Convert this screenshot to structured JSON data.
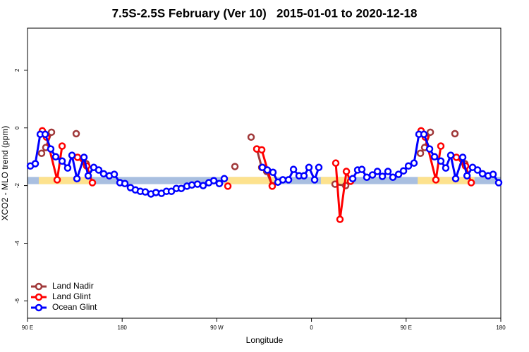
{
  "chart_data": {
    "type": "line",
    "title": "7.5S-2.5S February (Ver 10)   2015-01-01 to 2020-12-18",
    "x_label": "Longitude",
    "y_label": "XCO2 - MLO trend (ppm)",
    "xlim": [
      90,
      540
    ],
    "ylim": [
      -6.6,
      3.46
    ],
    "xticks": [
      {
        "value": 90,
        "label": "90 E"
      },
      180,
      {
        "value": 270,
        "label": "90 W"
      },
      {
        "value": 360,
        "label": "0"
      },
      {
        "value": 450,
        "label": "90 E"
      },
      {
        "value": 540,
        "label": "180"
      }
    ],
    "yticks": [
      -6,
      -4,
      -2,
      0,
      2
    ],
    "legend": "bottom-left",
    "band": {
      "ylim": [
        -1.95,
        -1.7
      ],
      "color": "#a9bfe0",
      "land_color": "#fde28e",
      "land_x": [
        [
          100.7,
          151
        ],
        [
          277,
          327
        ],
        [
          369,
          394
        ],
        [
          461,
          515
        ]
      ]
    },
    "series": [
      {
        "name": "Land Nadir",
        "color": "#a0393a",
        "x": [
          103.4,
          107.4,
          112.8,
          null,
          136.3,
          null,
          145.7,
          null,
          287.2,
          null,
          302.6,
          null,
          308.0,
          312.7,
          317.4,
          322.7,
          null,
          382.4,
          392.5,
          null,
          463.6,
          467.6,
          473.0,
          null,
          496.4,
          null,
          505.8
        ],
        "values": [
          -0.88,
          -0.68,
          -0.15,
          null,
          -0.2,
          null,
          -1.24,
          null,
          -1.34,
          null,
          -0.32,
          null,
          -0.73,
          -1.37,
          -1.51,
          -2.0,
          null,
          -1.95,
          -2.0,
          null,
          -0.88,
          -0.68,
          -0.15,
          null,
          -0.2,
          null,
          -1.24
        ]
      },
      {
        "name": "Land Glint",
        "color": "#ff0000",
        "x": [
          104.1,
          108.1,
          118.2,
          122.9,
          null,
          137.6,
          146.3,
          151.7,
          null,
          280.5,
          null,
          308.0,
          312.7,
          322.7,
          null,
          383.1,
          387.1,
          393.2,
          397.2,
          null,
          464.2,
          468.2,
          478.3,
          483.0,
          null,
          497.8,
          506.5,
          511.9
        ],
        "values": [
          -0.1,
          -0.32,
          -1.8,
          -0.63,
          null,
          -1.02,
          -1.32,
          -1.9,
          null,
          -2.02,
          null,
          -0.73,
          -0.76,
          -2.02,
          null,
          -1.22,
          -3.17,
          -1.51,
          -1.85,
          null,
          -0.1,
          -0.32,
          -1.8,
          -0.63,
          null,
          -1.02,
          -1.32,
          -1.9
        ]
      },
      {
        "name": "Ocean Glint",
        "color": "#0000ff",
        "x": [
          92.7,
          97.4,
          102.1,
          106.8,
          112.1,
          116.8,
          122.9,
          128.2,
          132.3,
          137.0,
          143.7,
          147.7,
          153.0,
          157.7,
          162.4,
          167.8,
          172.5,
          177.9,
          182.6,
          187.9,
          192.6,
          197.3,
          202.0,
          207.4,
          212.1,
          217.4,
          222.1,
          226.8,
          231.5,
          236.2,
          241.6,
          246.3,
          251.6,
          257.0,
          262.4,
          267.1,
          272.4,
          277.1,
          null,
          313.3,
          318.0,
          323.4,
          328.1,
          332.8,
          338.2,
          342.9,
          348.2,
          352.9,
          357.6,
          363.0,
          367.0,
          null,
          399.2,
          403.9,
          407.9,
          412.6,
          418.0,
          422.7,
          427.4,
          432.7,
          437.4,
          442.8,
          447.5,
          452.2,
          457.5,
          462.2,
          466.9,
          472.3,
          477.0,
          483.0,
          487.7,
          492.4,
          497.1,
          503.8,
          507.9,
          513.2,
          517.9,
          522.6,
          528.0,
          532.7,
          538.0
        ],
        "values": [
          -1.32,
          -1.24,
          -0.22,
          -0.22,
          -0.73,
          -1.0,
          -1.15,
          -1.39,
          -0.95,
          -1.76,
          -1.02,
          -1.66,
          -1.37,
          -1.46,
          -1.59,
          -1.66,
          -1.61,
          -1.9,
          -1.93,
          -2.07,
          -2.15,
          -2.2,
          -2.22,
          -2.29,
          -2.24,
          -2.27,
          -2.2,
          -2.2,
          -2.1,
          -2.1,
          -2.02,
          -1.98,
          -1.95,
          -2.0,
          -1.9,
          -1.83,
          -1.93,
          -1.76,
          null,
          -1.37,
          -1.46,
          -1.54,
          -1.88,
          -1.8,
          -1.8,
          -1.44,
          -1.66,
          -1.66,
          -1.37,
          -1.8,
          -1.37,
          null,
          -1.76,
          -1.46,
          -1.44,
          -1.71,
          -1.63,
          -1.51,
          -1.68,
          -1.51,
          -1.71,
          -1.61,
          -1.49,
          -1.32,
          -1.22,
          -0.22,
          -0.22,
          -0.73,
          -1.0,
          -1.15,
          -1.39,
          -0.95,
          -1.76,
          -1.02,
          -1.66,
          -1.37,
          -1.46,
          -1.59,
          -1.66,
          -1.61,
          -1.9
        ]
      }
    ]
  }
}
